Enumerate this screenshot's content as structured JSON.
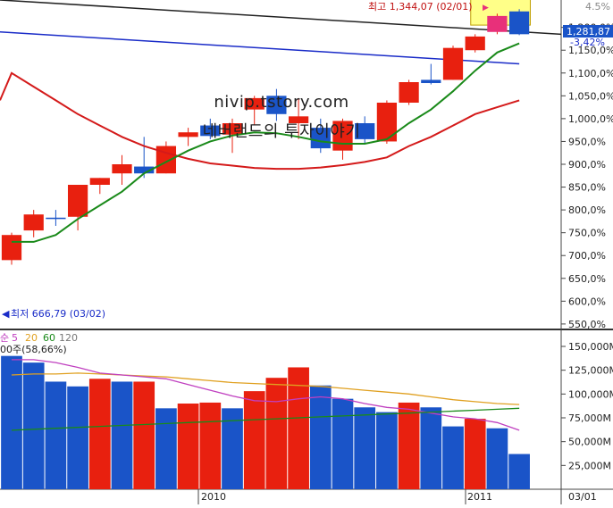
{
  "chart_data": {
    "type": "candlestick",
    "price": {
      "ylabels": [
        "1,200,0%",
        "1,150,0%",
        "1,100,0%",
        "1,050,0%",
        "1,000,0%",
        "950,0%",
        "900,0%",
        "850,0%",
        "800,0%",
        "750,0%",
        "700,0%",
        "650,0%",
        "600,0%",
        "550,0%"
      ],
      "ylim": [
        540,
        1260
      ],
      "candles": [
        {
          "o": 690,
          "h": 750,
          "l": 680,
          "c": 745,
          "color": "red"
        },
        {
          "o": 755,
          "h": 800,
          "l": 740,
          "c": 790,
          "color": "red"
        },
        {
          "o": 780,
          "h": 800,
          "l": 765,
          "c": 783,
          "color": "blue"
        },
        {
          "o": 785,
          "h": 855,
          "l": 755,
          "c": 855,
          "color": "red"
        },
        {
          "o": 855,
          "h": 870,
          "l": 835,
          "c": 870,
          "color": "red"
        },
        {
          "o": 880,
          "h": 920,
          "l": 855,
          "c": 900,
          "color": "red"
        },
        {
          "o": 895,
          "h": 960,
          "l": 870,
          "c": 880,
          "color": "blue"
        },
        {
          "o": 880,
          "h": 950,
          "l": 880,
          "c": 940,
          "color": "red"
        },
        {
          "o": 960,
          "h": 980,
          "l": 940,
          "c": 970,
          "color": "red"
        },
        {
          "o": 985,
          "h": 1000,
          "l": 955,
          "c": 962,
          "color": "blue"
        },
        {
          "o": 965,
          "h": 1000,
          "l": 925,
          "c": 990,
          "color": "red"
        },
        {
          "o": 1020,
          "h": 1050,
          "l": 985,
          "c": 1045,
          "color": "red"
        },
        {
          "o": 1050,
          "h": 1065,
          "l": 995,
          "c": 1010,
          "color": "blue"
        },
        {
          "o": 990,
          "h": 1045,
          "l": 955,
          "c": 1005,
          "color": "red"
        },
        {
          "o": 980,
          "h": 1000,
          "l": 925,
          "c": 935,
          "color": "blue"
        },
        {
          "o": 930,
          "h": 1000,
          "l": 910,
          "c": 995,
          "color": "red"
        },
        {
          "o": 990,
          "h": 1005,
          "l": 945,
          "c": 955,
          "color": "blue"
        },
        {
          "o": 950,
          "h": 1040,
          "l": 945,
          "c": 1035,
          "color": "red"
        },
        {
          "o": 1035,
          "h": 1085,
          "l": 1030,
          "c": 1080,
          "color": "red"
        },
        {
          "o": 1085,
          "h": 1120,
          "l": 1075,
          "c": 1078,
          "color": "blue"
        },
        {
          "o": 1085,
          "h": 1160,
          "l": 1085,
          "c": 1155,
          "color": "red"
        },
        {
          "o": 1150,
          "h": 1185,
          "l": 1145,
          "c": 1180,
          "color": "red"
        },
        {
          "o": 1190,
          "h": 1230,
          "l": 1185,
          "c": 1225,
          "color": "red"
        },
        {
          "o": 1235,
          "h": 1240,
          "l": 1183,
          "c": 1185,
          "color": "blue"
        }
      ],
      "ma_green": [
        730,
        730,
        745,
        780,
        810,
        840,
        880,
        905,
        930,
        950,
        963,
        970,
        968,
        960,
        950,
        945,
        945,
        955,
        990,
        1020,
        1060,
        1105,
        1145,
        1165
      ],
      "ma_red": [
        1100,
        1070,
        1040,
        1010,
        985,
        960,
        940,
        925,
        912,
        902,
        897,
        892,
        890,
        890,
        893,
        898,
        905,
        915,
        940,
        960,
        985,
        1010,
        1025,
        1040
      ],
      "ma_blue_start": 1190,
      "ma_blue_end": 1120,
      "ma_black_start": 1260,
      "ma_black_end": 1185,
      "high_label": "최고 1,344,07 (02/01)",
      "low_label": "최저 666,79 (03/02)",
      "last_value": "1,281,87",
      "last_change": "-3,42%",
      "top_partial": "4.5%"
    },
    "volume": {
      "legend": {
        "prefix": "순",
        "ma5": "5",
        "ma20": "20",
        "ma60": "60",
        "ma120": "120",
        "line2": "00주(58,66%)"
      },
      "ylabels": [
        "150,000M",
        "125,000M",
        "100,000M",
        "75,000M",
        "50,000M",
        "25,000M"
      ],
      "ylim": [
        0,
        165000
      ],
      "bars": [
        {
          "v": 140000,
          "color": "blue"
        },
        {
          "v": 133000,
          "color": "blue"
        },
        {
          "v": 113000,
          "color": "blue"
        },
        {
          "v": 108000,
          "color": "blue"
        },
        {
          "v": 116000,
          "color": "red"
        },
        {
          "v": 113000,
          "color": "blue"
        },
        {
          "v": 113000,
          "color": "red"
        },
        {
          "v": 85000,
          "color": "blue"
        },
        {
          "v": 90000,
          "color": "red"
        },
        {
          "v": 91000,
          "color": "red"
        },
        {
          "v": 85000,
          "color": "blue"
        },
        {
          "v": 103000,
          "color": "red"
        },
        {
          "v": 117000,
          "color": "red"
        },
        {
          "v": 128000,
          "color": "red"
        },
        {
          "v": 109000,
          "color": "blue"
        },
        {
          "v": 95000,
          "color": "blue"
        },
        {
          "v": 86000,
          "color": "blue"
        },
        {
          "v": 81000,
          "color": "blue"
        },
        {
          "v": 91000,
          "color": "red"
        },
        {
          "v": 86000,
          "color": "blue"
        },
        {
          "v": 66000,
          "color": "blue"
        },
        {
          "v": 74000,
          "color": "red"
        },
        {
          "v": 64000,
          "color": "blue"
        },
        {
          "v": 37000,
          "color": "blue"
        }
      ],
      "ma_magenta": [
        136000,
        136000,
        133000,
        128000,
        122000,
        120000,
        118000,
        116000,
        110000,
        104000,
        98000,
        93000,
        92000,
        95000,
        97000,
        95000,
        90000,
        86000,
        84000,
        80000,
        76000,
        74000,
        70000,
        62000
      ],
      "ma_orange": [
        120000,
        121000,
        121000,
        122000,
        121000,
        120000,
        119000,
        118000,
        116000,
        114000,
        112000,
        111000,
        110000,
        109000,
        108000,
        106000,
        104000,
        102000,
        100000,
        97000,
        94000,
        92000,
        90000,
        89000
      ],
      "ma_green": [
        62000,
        63000,
        64000,
        65000,
        66000,
        67000,
        68000,
        69000,
        70000,
        71000,
        72000,
        73000,
        74000,
        75000,
        76000,
        77000,
        78000,
        79000,
        80000,
        81000,
        82000,
        83000,
        84000,
        85000
      ]
    },
    "xlabels": {
      "y2010": "2010",
      "y2011": "2011",
      "last": "03/01"
    }
  },
  "watermark": {
    "line1": "nivip.tstory.com",
    "line2": "네버랜드의 투자이야기"
  },
  "colors": {
    "up": "#e8200f",
    "down": "#1a54c8",
    "ma_green": "#1a8a1a",
    "ma_red": "#d41a1a",
    "ma_blue": "#1a2cc8",
    "ma_black": "#222222",
    "ma_magenta": "#c040c0",
    "ma_orange": "#e0a020",
    "vol_green": "#1a8a1a",
    "highlight": "#ffff88",
    "pink": "#e8307a"
  }
}
